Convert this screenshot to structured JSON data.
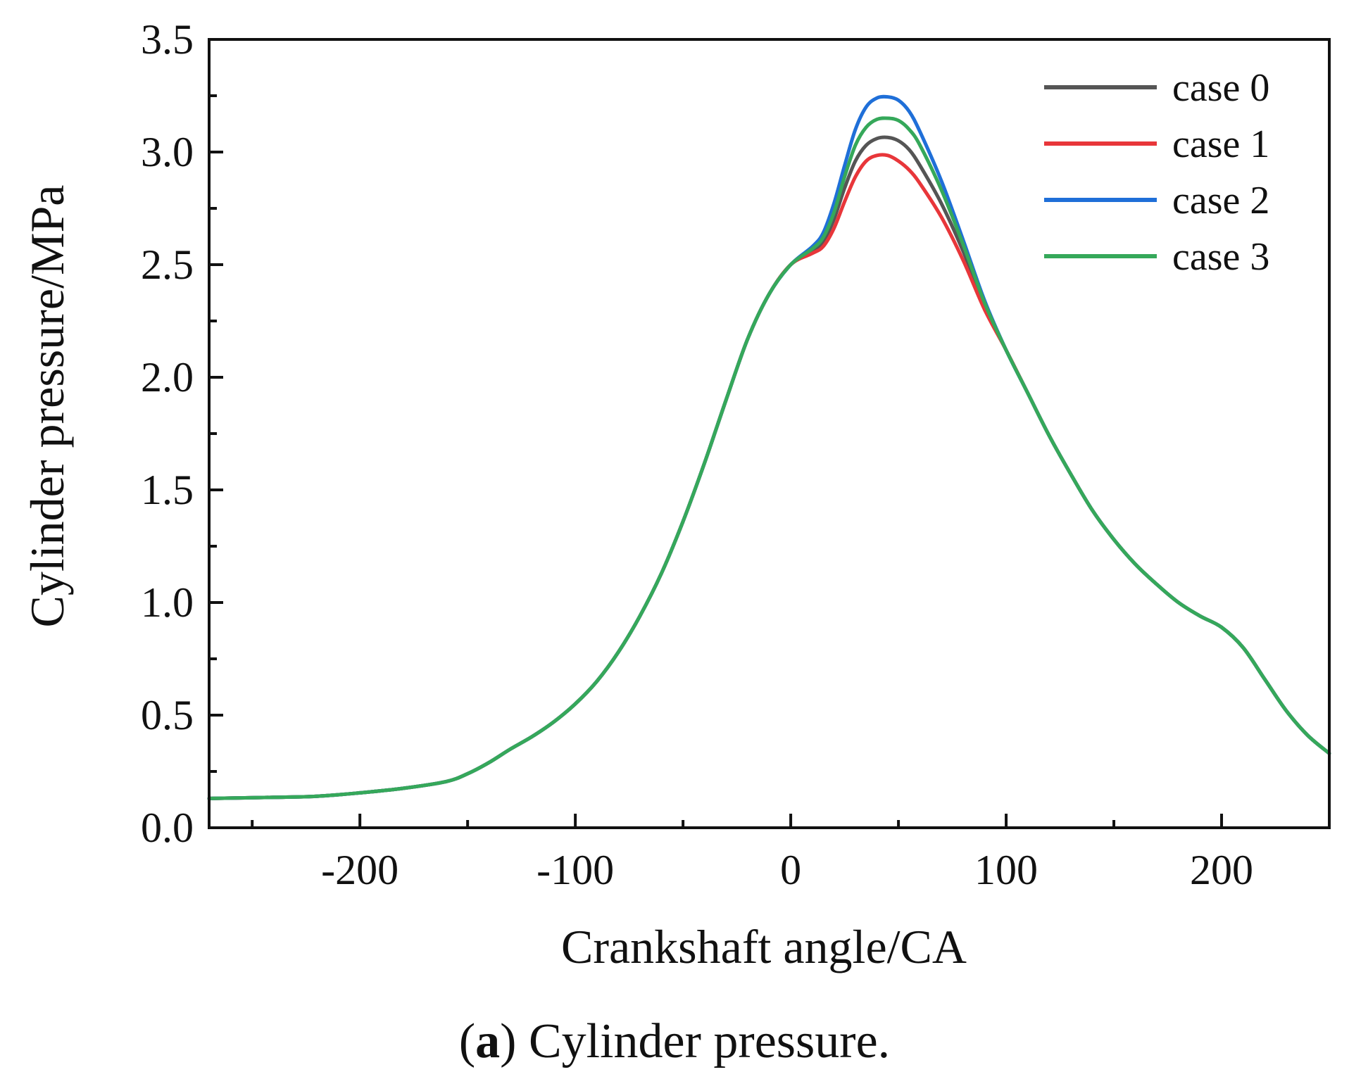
{
  "chart_data": {
    "type": "line",
    "title": "",
    "xlabel": "Crankshaft angle/CA",
    "ylabel": "Cylinder pressure/MPa",
    "xlim": [
      -270,
      250
    ],
    "ylim": [
      0.0,
      3.5
    ],
    "xticks": [
      -200,
      -100,
      0,
      100,
      200
    ],
    "xtick_labels": [
      "-200",
      "-100",
      "0",
      "100",
      "200"
    ],
    "yticks": [
      0.0,
      0.5,
      1.0,
      1.5,
      2.0,
      2.5,
      3.0,
      3.5
    ],
    "ytick_labels": [
      "0.0",
      "0.5",
      "1.0",
      "1.5",
      "2.0",
      "2.5",
      "3.0",
      "3.5"
    ],
    "grid": false,
    "legend_position": "top-right",
    "base_curve": {
      "x": [
        -270,
        -240,
        -220,
        -200,
        -180,
        -160,
        -150,
        -140,
        -130,
        -120,
        -110,
        -100,
        -90,
        -80,
        -70,
        -60,
        -50,
        -40,
        -30,
        -20,
        -10,
        0
      ],
      "y": [
        0.13,
        0.135,
        0.14,
        0.155,
        0.175,
        0.205,
        0.24,
        0.29,
        0.35,
        0.405,
        0.47,
        0.55,
        0.65,
        0.78,
        0.94,
        1.13,
        1.36,
        1.62,
        1.9,
        2.17,
        2.37,
        2.5
      ]
    },
    "tail_curve": {
      "x": [
        90,
        100,
        110,
        120,
        130,
        140,
        150,
        160,
        170,
        180,
        190,
        200,
        210,
        220,
        230,
        240,
        250
      ],
      "y": [
        2.32,
        2.12,
        1.93,
        1.74,
        1.57,
        1.41,
        1.28,
        1.17,
        1.08,
        1.0,
        0.94,
        0.89,
        0.8,
        0.66,
        0.52,
        0.41,
        0.33
      ]
    },
    "series": [
      {
        "name": "case 0",
        "color": "#555555",
        "x": [
          0,
          10,
          15,
          20,
          25,
          30,
          35,
          40,
          45,
          50,
          55,
          60,
          70,
          80,
          90
        ],
        "y": [
          2.5,
          2.56,
          2.6,
          2.7,
          2.84,
          2.96,
          3.03,
          3.06,
          3.065,
          3.05,
          3.01,
          2.94,
          2.77,
          2.56,
          2.32
        ]
      },
      {
        "name": "case 1",
        "color": "#e8363a",
        "x": [
          0,
          10,
          15,
          20,
          25,
          30,
          35,
          40,
          45,
          50,
          55,
          60,
          70,
          80,
          90
        ],
        "y": [
          2.5,
          2.55,
          2.58,
          2.66,
          2.78,
          2.89,
          2.96,
          2.985,
          2.985,
          2.96,
          2.92,
          2.86,
          2.71,
          2.52,
          2.3
        ]
      },
      {
        "name": "case 2",
        "color": "#1f6fd8",
        "x": [
          0,
          10,
          15,
          20,
          25,
          30,
          35,
          40,
          45,
          50,
          55,
          60,
          70,
          80,
          90
        ],
        "y": [
          2.5,
          2.58,
          2.64,
          2.77,
          2.94,
          3.1,
          3.2,
          3.24,
          3.245,
          3.23,
          3.18,
          3.09,
          2.87,
          2.61,
          2.34
        ]
      },
      {
        "name": "case 3",
        "color": "#35a85a",
        "x": [
          0,
          10,
          15,
          20,
          25,
          30,
          35,
          40,
          45,
          50,
          55,
          60,
          70,
          80,
          90
        ],
        "y": [
          2.5,
          2.57,
          2.62,
          2.73,
          2.89,
          3.03,
          3.11,
          3.145,
          3.15,
          3.14,
          3.1,
          3.03,
          2.83,
          2.59,
          2.33
        ]
      }
    ]
  },
  "caption": {
    "letter": "a",
    "text": " Cylinder pressure."
  }
}
